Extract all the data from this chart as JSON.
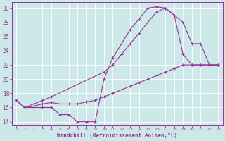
{
  "xlabel": "Windchill (Refroidissement éolien,°C)",
  "bg_color": "#cce8e8",
  "grid_color": "#b0d0d0",
  "line_color": "#993399",
  "xlim": [
    -0.5,
    23.5
  ],
  "ylim": [
    13.5,
    30.8
  ],
  "xticks": [
    0,
    1,
    2,
    3,
    4,
    5,
    6,
    7,
    8,
    9,
    10,
    11,
    12,
    13,
    14,
    15,
    16,
    17,
    18,
    19,
    20,
    21,
    22,
    23
  ],
  "yticks": [
    14,
    16,
    18,
    20,
    22,
    24,
    26,
    28,
    30
  ],
  "curve1_x": [
    0,
    1,
    2,
    3,
    4,
    5,
    6,
    7,
    8,
    9,
    10,
    11,
    12,
    13,
    14,
    15,
    16,
    17,
    18,
    19,
    20,
    21,
    22,
    23
  ],
  "curve1_y": [
    17,
    16,
    16,
    16,
    16,
    15,
    15,
    14,
    14,
    14,
    20,
    23,
    25,
    27,
    28.5,
    30,
    30.2,
    30,
    29,
    28,
    25,
    25,
    22,
    22
  ],
  "curve2_x": [
    0,
    1,
    2,
    3,
    4,
    10,
    11,
    12,
    13,
    14,
    15,
    16,
    17,
    18,
    19,
    20,
    21,
    22,
    23
  ],
  "curve2_y": [
    17,
    16,
    16.5,
    17,
    17.5,
    21,
    22,
    23.5,
    25,
    26.5,
    28,
    29.5,
    30,
    29,
    23.5,
    22,
    22,
    22,
    22
  ],
  "curve3_x": [
    0,
    1,
    2,
    3,
    4,
    5,
    6,
    7,
    8,
    9,
    10,
    11,
    12,
    13,
    14,
    15,
    16,
    17,
    18,
    19,
    20,
    21,
    22,
    23
  ],
  "curve3_y": [
    17,
    16,
    16.2,
    16.5,
    16.7,
    16.5,
    16.5,
    16.5,
    16.8,
    17,
    17.5,
    18,
    18.5,
    19,
    19.5,
    20,
    20.5,
    21,
    21.5,
    22,
    22,
    22,
    22,
    22
  ]
}
